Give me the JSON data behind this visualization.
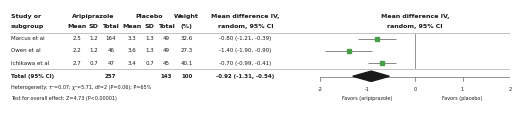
{
  "studies": [
    "Marcus et al",
    "Owen et al",
    "Ichikawa et al"
  ],
  "aripiprazole_mean": [
    2.5,
    2.2,
    2.7
  ],
  "aripiprazole_sd": [
    1.2,
    1.2,
    0.7
  ],
  "aripiprazole_total": [
    164,
    46,
    47
  ],
  "placebo_mean": [
    3.3,
    3.6,
    3.4
  ],
  "placebo_sd": [
    1.3,
    1.3,
    0.7
  ],
  "placebo_total": [
    49,
    49,
    45
  ],
  "weight": [
    32.6,
    27.3,
    40.1
  ],
  "mean_diff": [
    -0.8,
    -1.4,
    -0.7
  ],
  "ci_lower": [
    -1.21,
    -1.9,
    -0.99
  ],
  "ci_upper": [
    -0.39,
    -0.9,
    -0.41
  ],
  "total_aripiprazole": 257,
  "total_placebo": 143,
  "total_mean_diff": -0.92,
  "total_ci_lower": -1.31,
  "total_ci_upper": -0.54,
  "md_text": [
    "-0.80 (-1.21, -0.39)",
    "-1.40 (-1.90, -0.90)",
    "-0.70 (-0.99, -0.41)"
  ],
  "total_md_text": "-0.92 (-1.31, -0.54)",
  "heterogeneity_text": "Heterogeneity: τ²=0.07; χ²=5.71, df=2 (P=0.06); P=65%",
  "overall_effect_text": "Test for overall effect: Z=4.73 (P<0.00001)",
  "xticks": [
    -2,
    -1,
    0,
    1,
    2
  ],
  "xlabel_left": "Favors (aripiprazole)",
  "xlabel_right": "Favors (placebo)",
  "marker_color": "#4a9e4a",
  "diamond_color": "#1a1a1a",
  "line_color": "#888888",
  "text_color": "#1a1a1a",
  "forest_xlim": [
    -2.2,
    2.2
  ]
}
